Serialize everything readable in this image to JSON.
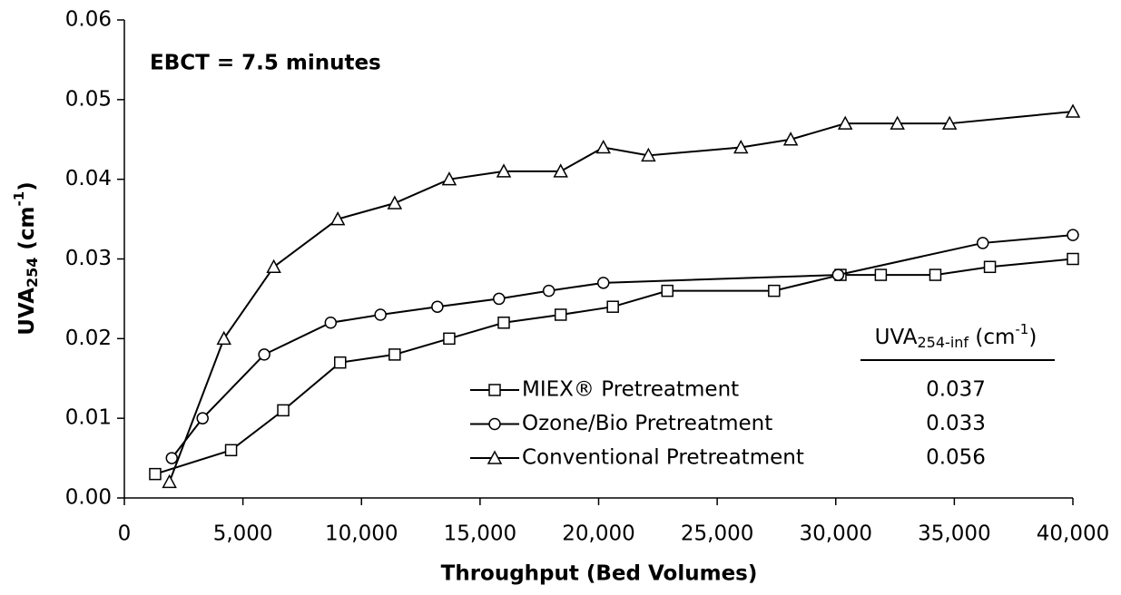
{
  "chart_data": {
    "type": "line",
    "annotation": "EBCT = 7.5 minutes",
    "x_label": "Throughput (Bed Volumes)",
    "y_label": {
      "main": "UVA",
      "sub": "254",
      "unit": " (cm",
      "sup": "-1",
      "close": ")"
    },
    "legend_header": {
      "main": "UVA",
      "sub": "254-inf",
      "unit": " (cm",
      "sup": "-1",
      "close": ")"
    },
    "xlim": [
      0,
      40000
    ],
    "xticks": [
      0,
      {
        "value": 5000,
        "label": "5,000"
      },
      {
        "value": 10000,
        "label": "10,000"
      },
      {
        "value": 15000,
        "label": "15,000"
      },
      {
        "value": 20000,
        "label": "20,000"
      },
      {
        "value": 25000,
        "label": "25,000"
      },
      {
        "value": 30000,
        "label": "30,000"
      },
      {
        "value": 35000,
        "label": "35,000"
      },
      {
        "value": 40000,
        "label": "40,000"
      }
    ],
    "ylim": [
      0,
      0.06
    ],
    "yticks": [
      {
        "value": 0,
        "label": "0.00"
      },
      0.01,
      0.02,
      0.03,
      0.04,
      0.05,
      0.06
    ],
    "grid": false,
    "series": [
      {
        "name": "MIEX® Pretreatment",
        "marker": "square",
        "color": "#000000",
        "influent": "0.037",
        "x": [
          1300,
          4500,
          6700,
          9100,
          11400,
          13700,
          16000,
          18400,
          20600,
          22900,
          27400,
          30200,
          31900,
          34200,
          36500,
          40000
        ],
        "values": [
          0.003,
          0.006,
          0.011,
          0.017,
          0.018,
          0.02,
          0.022,
          0.023,
          0.024,
          0.026,
          0.026,
          0.028,
          0.028,
          0.028,
          0.029,
          0.03
        ]
      },
      {
        "name": "Ozone/Bio Pretreatment",
        "marker": "circle",
        "color": "#000000",
        "influent": "0.033",
        "x": [
          2000,
          3300,
          5900,
          8700,
          10800,
          13200,
          15800,
          17900,
          20200,
          30100,
          36200,
          40000
        ],
        "values": [
          0.005,
          0.01,
          0.018,
          0.022,
          0.023,
          0.024,
          0.025,
          0.026,
          0.027,
          0.028,
          0.032,
          0.033
        ]
      },
      {
        "name": "Conventional Pretreatment",
        "marker": "triangle",
        "color": "#000000",
        "influent": "0.056",
        "x": [
          1900,
          4200,
          6300,
          9000,
          11400,
          13700,
          16000,
          18400,
          20200,
          22100,
          26000,
          28100,
          30400,
          32600,
          34800,
          40000
        ],
        "values": [
          0.002,
          0.02,
          0.029,
          0.035,
          0.037,
          0.04,
          0.041,
          0.041,
          0.044,
          0.043,
          0.044,
          0.045,
          0.047,
          0.047,
          0.047,
          0.0485
        ]
      }
    ]
  }
}
